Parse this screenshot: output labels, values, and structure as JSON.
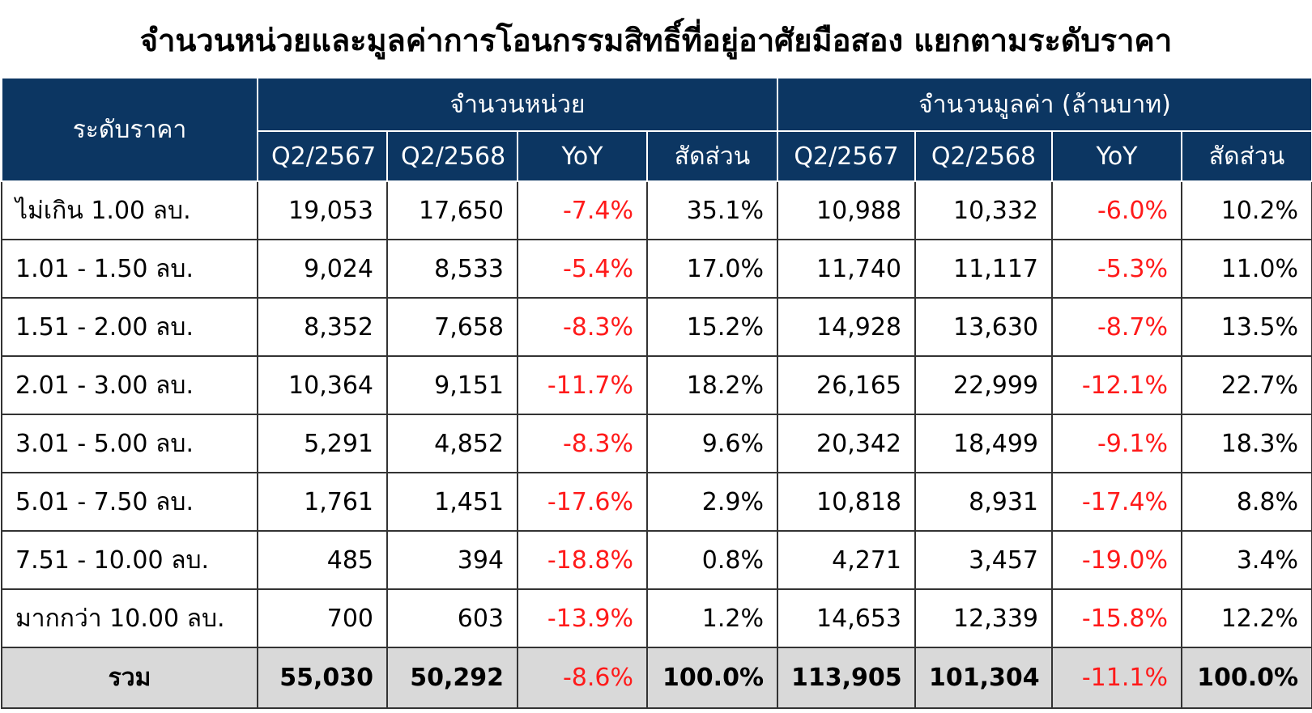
{
  "title": "จำนวนหน่วยและมูลค่าการโอนกรรมสิทธิ์ที่อยู่อาศัยมือสอง แยกตามระดับราคา",
  "header": {
    "label_column": "ระดับราคา",
    "groups": [
      "จำนวนหน่วย",
      "จำนวนมูลค่า (ล้านบาท)"
    ],
    "subheaders": [
      "Q2/2567",
      "Q2/2568",
      "YoY",
      "สัดส่วน",
      "Q2/2567",
      "Q2/2568",
      "YoY",
      "สัดส่วน"
    ]
  },
  "table": {
    "rows": [
      [
        "ไม่เกิน 1.00 ลบ.",
        "19,053",
        "17,650",
        "-7.4%",
        "35.1%",
        "10,988",
        "10,332",
        "-6.0%",
        "10.2%"
      ],
      [
        "1.01 - 1.50 ลบ.",
        "9,024",
        "8,533",
        "-5.4%",
        "17.0%",
        "11,740",
        "11,117",
        "-5.3%",
        "11.0%"
      ],
      [
        "1.51 - 2.00 ลบ.",
        "8,352",
        "7,658",
        "-8.3%",
        "15.2%",
        "14,928",
        "13,630",
        "-8.7%",
        "13.5%"
      ],
      [
        "2.01 - 3.00 ลบ.",
        "10,364",
        "9,151",
        "-11.7%",
        "18.2%",
        "26,165",
        "22,999",
        "-12.1%",
        "22.7%"
      ],
      [
        "3.01 - 5.00 ลบ.",
        "5,291",
        "4,852",
        "-8.3%",
        "9.6%",
        "20,342",
        "18,499",
        "-9.1%",
        "18.3%"
      ],
      [
        "5.01 - 7.50 ลบ.",
        "1,761",
        "1,451",
        "-17.6%",
        "2.9%",
        "10,818",
        "8,931",
        "-17.4%",
        "8.8%"
      ],
      [
        "7.51 - 10.00 ลบ.",
        "485",
        "394",
        "-18.8%",
        "0.8%",
        "4,271",
        "3,457",
        "-19.0%",
        "3.4%"
      ],
      [
        "มากกว่า 10.00 ลบ.",
        "700",
        "603",
        "-13.9%",
        "1.2%",
        "14,653",
        "12,339",
        "-15.8%",
        "12.2%"
      ]
    ],
    "total": [
      "รวม",
      "55,030",
      "50,292",
      "-8.6%",
      "100.0%",
      "113,905",
      "101,304",
      "-11.1%",
      "100.0%"
    ]
  }
}
